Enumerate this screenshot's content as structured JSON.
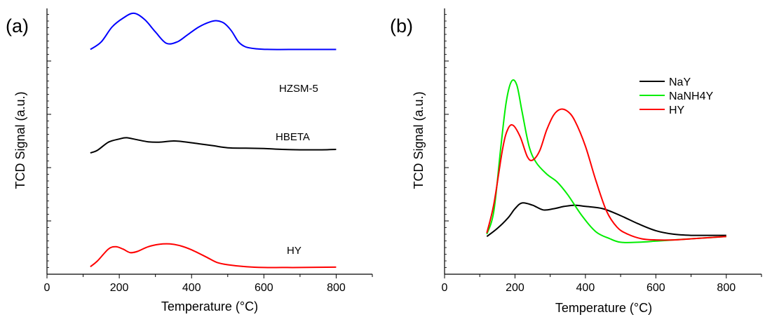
{
  "chart_data": [
    {
      "type": "line",
      "panel_label": "(a)",
      "xlabel": "Temperature (°C)",
      "ylabel": "TCD Signal (a.u.)",
      "xlim": [
        0,
        900
      ],
      "ylim": [
        0,
        100
      ],
      "x_ticks": [
        0,
        200,
        400,
        600,
        800
      ],
      "y_tick_labels": false,
      "legend": "none",
      "series": [
        {
          "name": "HZSM-5",
          "color": "#0000ff",
          "points": [
            [
              120,
              66
            ],
            [
              150,
              72
            ],
            [
              180,
              84
            ],
            [
              210,
              91
            ],
            [
              240,
              95
            ],
            [
              270,
              90
            ],
            [
              300,
              80
            ],
            [
              330,
              71
            ],
            [
              360,
              72
            ],
            [
              390,
              78
            ],
            [
              420,
              84
            ],
            [
              450,
              88
            ],
            [
              470,
              89
            ],
            [
              490,
              87
            ],
            [
              510,
              81
            ],
            [
              530,
              72
            ],
            [
              550,
              68
            ],
            [
              580,
              66.5
            ],
            [
              620,
              66
            ],
            [
              700,
              66
            ],
            [
              800,
              66
            ]
          ]
        },
        {
          "name": "HBETA",
          "color": "#000000",
          "points": [
            [
              120,
              38.5
            ],
            [
              140,
              42
            ],
            [
              170,
              52
            ],
            [
              200,
              56
            ],
            [
              220,
              57.5
            ],
            [
              250,
              55
            ],
            [
              280,
              52.5
            ],
            [
              310,
              52
            ],
            [
              350,
              53.5
            ],
            [
              380,
              52.5
            ],
            [
              420,
              50
            ],
            [
              460,
              47.5
            ],
            [
              500,
              45
            ],
            [
              550,
              44.5
            ],
            [
              600,
              44
            ],
            [
              650,
              43
            ],
            [
              700,
              42.5
            ],
            [
              760,
              42.5
            ],
            [
              800,
              43
            ]
          ]
        },
        {
          "name": "HY",
          "color": "#ff0000",
          "points": [
            [
              120,
              1.5
            ],
            [
              140,
              9
            ],
            [
              170,
              24
            ],
            [
              190,
              27
            ],
            [
              210,
              24
            ],
            [
              230,
              19.5
            ],
            [
              250,
              21
            ],
            [
              280,
              27
            ],
            [
              310,
              30
            ],
            [
              340,
              30.5
            ],
            [
              370,
              28
            ],
            [
              400,
              23
            ],
            [
              440,
              14
            ],
            [
              470,
              7
            ],
            [
              500,
              4
            ],
            [
              550,
              1.5
            ],
            [
              600,
              0.5
            ],
            [
              650,
              0.5
            ],
            [
              700,
              0.5
            ],
            [
              800,
              1
            ]
          ]
        }
      ]
    },
    {
      "type": "line",
      "panel_label": "(b)",
      "xlabel": "Temperature (°C)",
      "ylabel": "TCD Signal (a.u.)",
      "xlim": [
        0,
        900
      ],
      "ylim": [
        0,
        100
      ],
      "x_ticks": [
        0,
        200,
        400,
        600,
        800
      ],
      "y_tick_labels": false,
      "legend": "top-right",
      "series": [
        {
          "name": "NaY",
          "color": "#000000",
          "points": [
            [
              120,
              16
            ],
            [
              150,
              19.5
            ],
            [
              180,
              24
            ],
            [
              200,
              28
            ],
            [
              220,
              30.5
            ],
            [
              250,
              29.5
            ],
            [
              280,
              27.5
            ],
            [
              310,
              28
            ],
            [
              340,
              29
            ],
            [
              370,
              29.5
            ],
            [
              400,
              29
            ],
            [
              450,
              28
            ],
            [
              500,
              25
            ],
            [
              550,
              21.5
            ],
            [
              600,
              18.5
            ],
            [
              650,
              17
            ],
            [
              700,
              16.5
            ],
            [
              750,
              16.5
            ],
            [
              800,
              16.5
            ]
          ]
        },
        {
          "name": "NaNH4Y",
          "color": "#00ee00",
          "points": [
            [
              120,
              17
            ],
            [
              140,
              27
            ],
            [
              160,
              55
            ],
            [
              175,
              74
            ],
            [
              190,
              83
            ],
            [
              205,
              81.5
            ],
            [
              220,
              70
            ],
            [
              240,
              55
            ],
            [
              260,
              48
            ],
            [
              290,
              43
            ],
            [
              320,
              39.5
            ],
            [
              350,
              34
            ],
            [
              390,
              25
            ],
            [
              430,
              18
            ],
            [
              470,
              15
            ],
            [
              500,
              13.5
            ],
            [
              550,
              13.5
            ],
            [
              600,
              14
            ],
            [
              650,
              14.5
            ],
            [
              700,
              15
            ],
            [
              750,
              15.5
            ],
            [
              800,
              16
            ]
          ]
        },
        {
          "name": "HY",
          "color": "#ff0000",
          "points": [
            [
              120,
              17.5
            ],
            [
              140,
              30
            ],
            [
              165,
              54
            ],
            [
              180,
              62.5
            ],
            [
              195,
              64
            ],
            [
              215,
              59
            ],
            [
              235,
              50.5
            ],
            [
              250,
              49
            ],
            [
              270,
              53
            ],
            [
              290,
              62
            ],
            [
              310,
              68.5
            ],
            [
              330,
              71
            ],
            [
              350,
              70
            ],
            [
              370,
              66
            ],
            [
              400,
              55
            ],
            [
              430,
              40
            ],
            [
              460,
              27
            ],
            [
              490,
              20
            ],
            [
              520,
              17
            ],
            [
              560,
              15
            ],
            [
              600,
              14.5
            ],
            [
              650,
              14.5
            ],
            [
              700,
              15
            ],
            [
              750,
              15.5
            ],
            [
              800,
              16
            ]
          ]
        }
      ]
    }
  ]
}
